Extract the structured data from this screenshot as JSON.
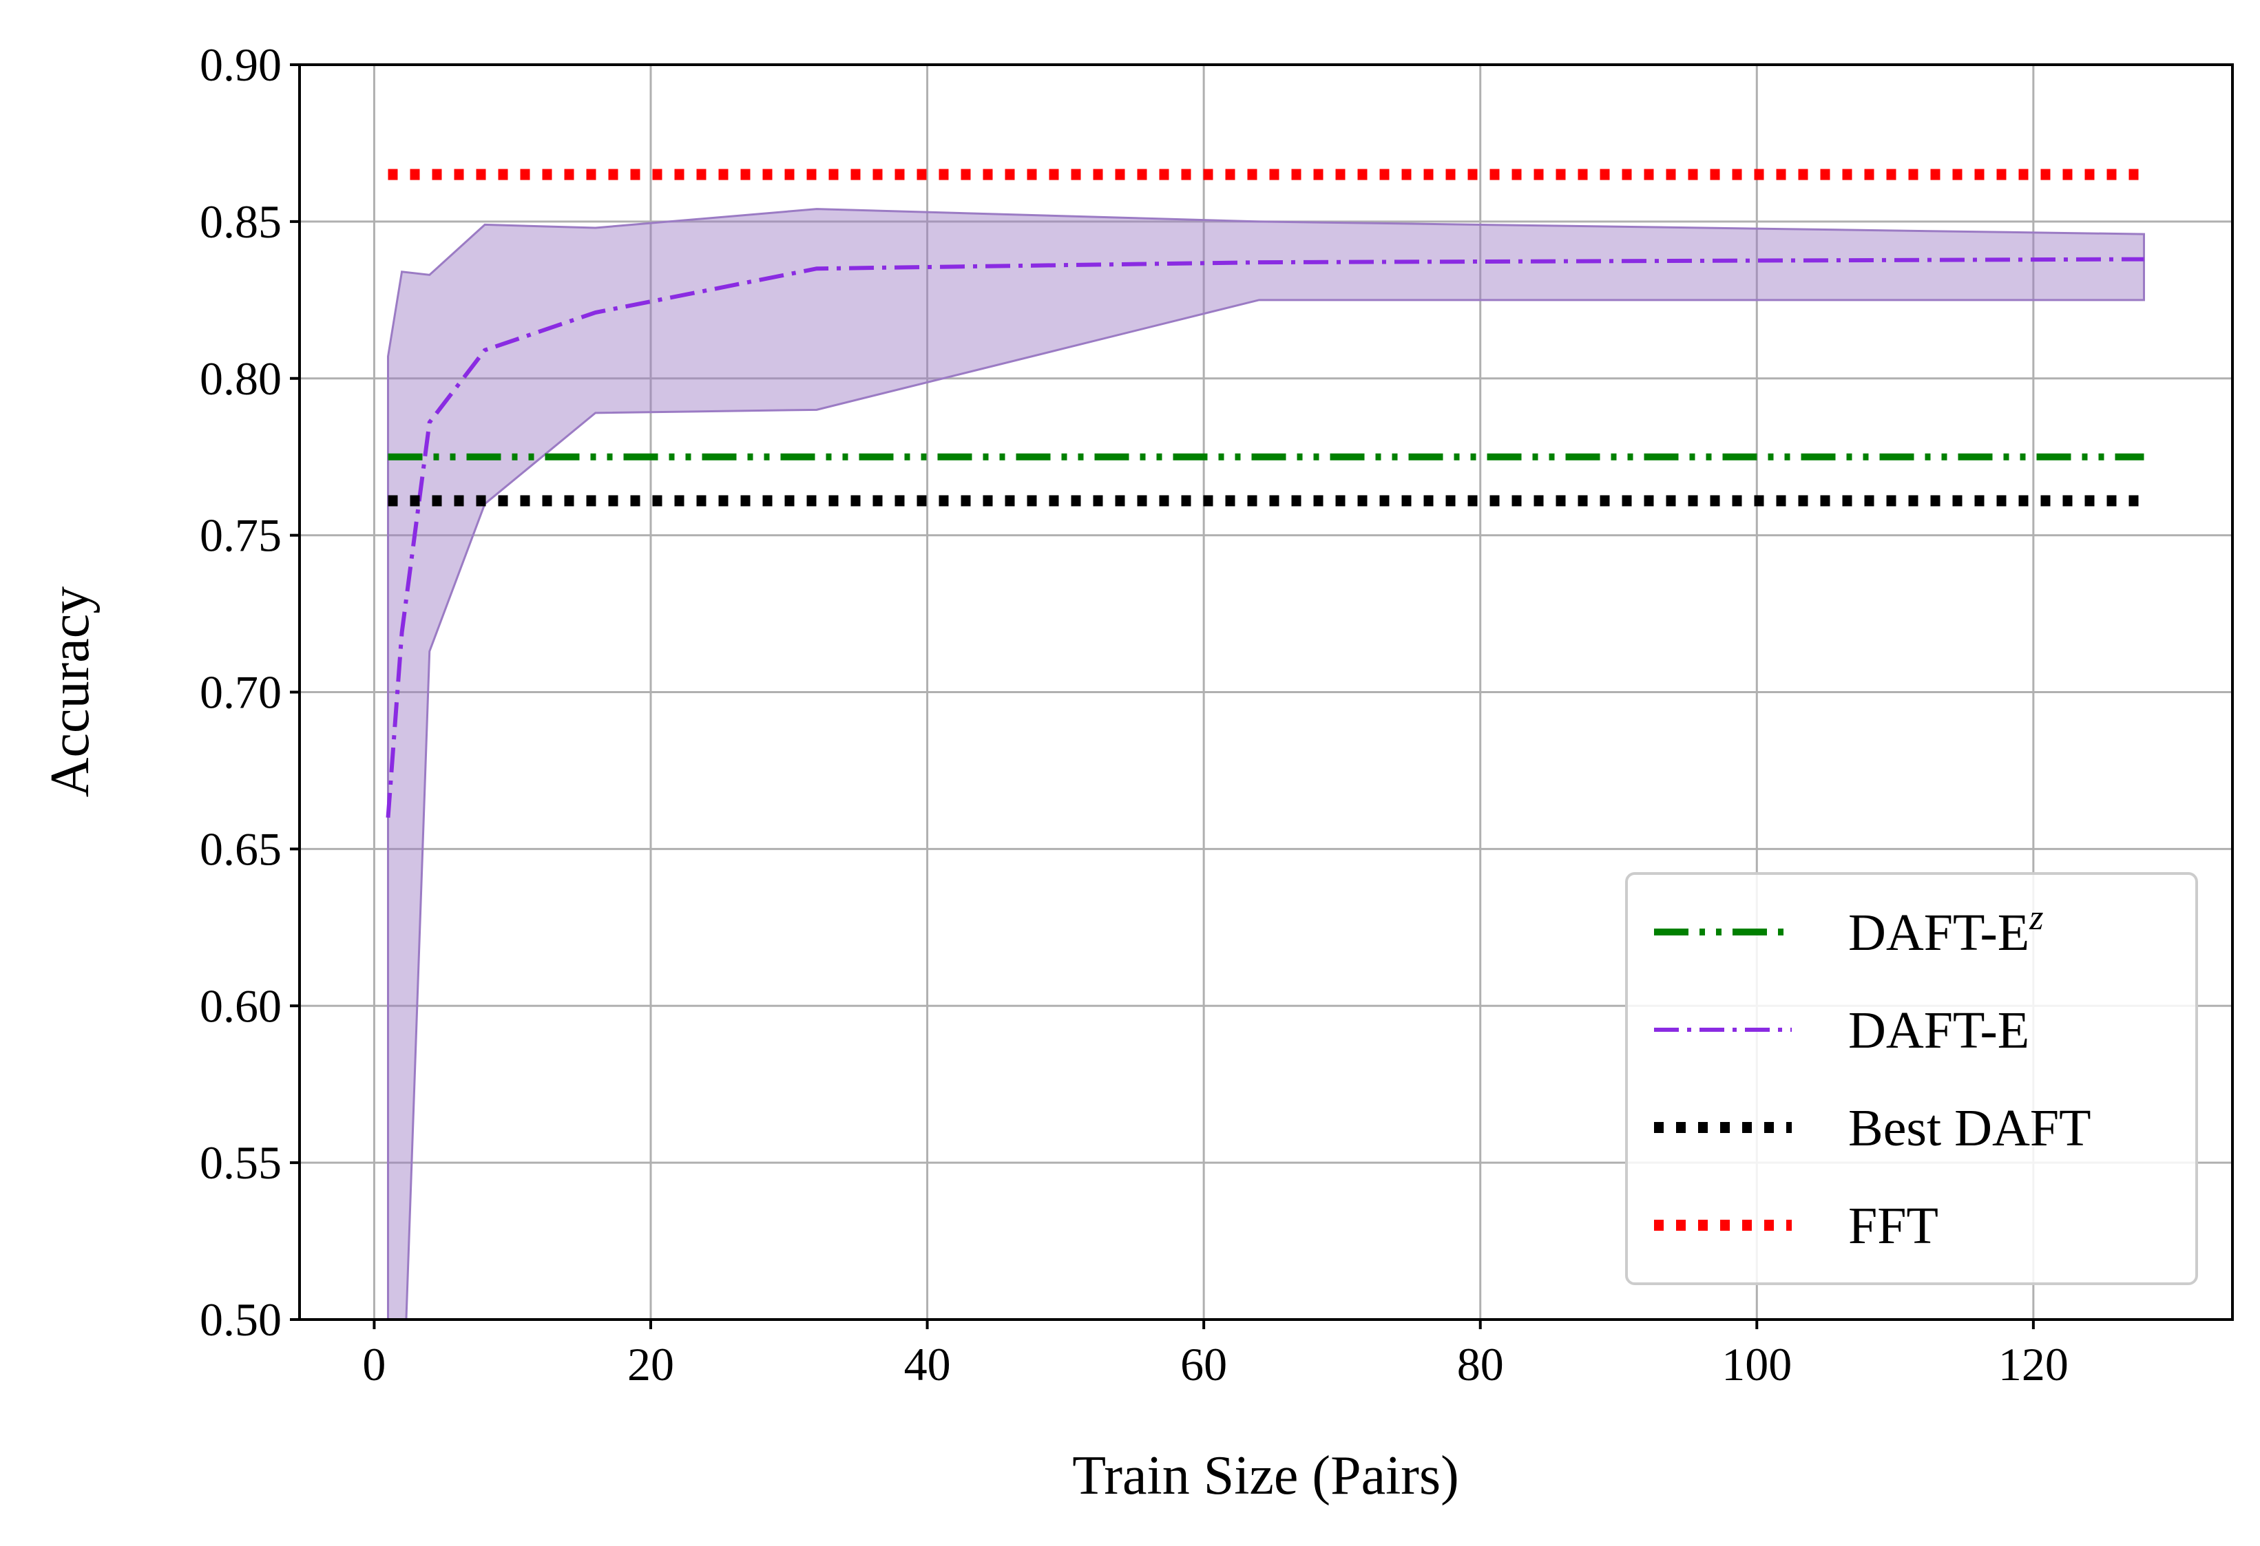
{
  "chart_data": {
    "type": "line",
    "title": "",
    "xlabel": "Train Size (Pairs)",
    "ylabel": "Accuracy",
    "xlim": [
      -5.4,
      134.4
    ],
    "ylim": [
      0.5,
      0.9
    ],
    "xticks": [
      0,
      20,
      40,
      60,
      80,
      100,
      120
    ],
    "yticks": [
      0.5,
      0.55,
      0.6,
      0.65,
      0.7,
      0.75,
      0.8,
      0.85,
      0.9
    ],
    "xtick_labels": [
      "0",
      "20",
      "40",
      "60",
      "80",
      "100",
      "120"
    ],
    "ytick_labels": [
      "0.50",
      "0.55",
      "0.60",
      "0.65",
      "0.70",
      "0.75",
      "0.80",
      "0.85",
      "0.90"
    ],
    "grid": true,
    "legend_position": "lower right",
    "series": [
      {
        "name": "DAFT-E",
        "label_main": "DAFT-E",
        "style": "dashdot",
        "color": "#8a2be2",
        "x": [
          1,
          2,
          4,
          8,
          16,
          32,
          64,
          128
        ],
        "y": [
          0.66,
          0.719,
          0.786,
          0.809,
          0.821,
          0.835,
          0.837,
          0.838
        ],
        "band_upper": [
          0.807,
          0.834,
          0.833,
          0.849,
          0.848,
          0.854,
          0.85,
          0.846
        ],
        "band_lower": [
          0.44,
          0.46,
          0.713,
          0.76,
          0.789,
          0.79,
          0.825,
          0.825
        ],
        "band_color": "#9b7bc4"
      },
      {
        "name": "DAFT-E^z",
        "label_main": "DAFT-E",
        "label_sup": "z",
        "style": "dashdotdot",
        "color": "#008000",
        "x": [
          1,
          128
        ],
        "y": [
          0.775,
          0.775
        ]
      },
      {
        "name": "Best DAFT",
        "label_main": "Best DAFT",
        "style": "dotted",
        "color": "#000000",
        "x": [
          1,
          128
        ],
        "y": [
          0.761,
          0.761
        ]
      },
      {
        "name": "FFT",
        "label_main": "FFT",
        "style": "dotted",
        "color": "#ff0000",
        "x": [
          1,
          128
        ],
        "y": [
          0.865,
          0.865
        ]
      }
    ],
    "legend_order": [
      "DAFT-E^z",
      "DAFT-E",
      "Best DAFT",
      "FFT"
    ]
  }
}
